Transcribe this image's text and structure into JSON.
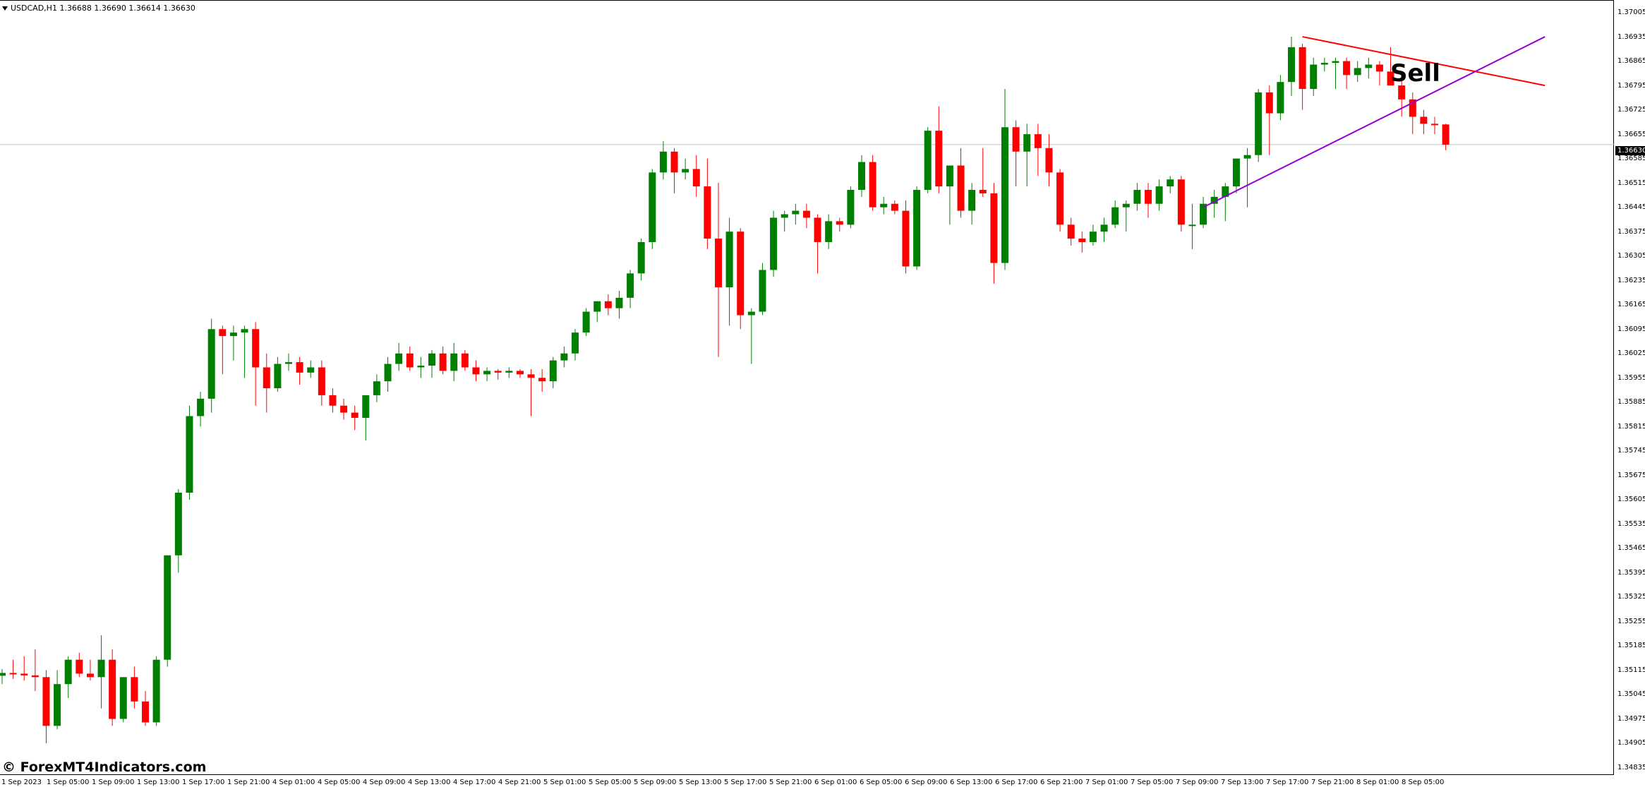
{
  "header": {
    "symbol_info": "USDCAD,H1  1.36688 1.36690 1.36614 1.36630"
  },
  "annotation": {
    "sell_label": "Sell"
  },
  "watermark": "© ForexMT4Indicators.com",
  "current_price": "1.36630",
  "colors": {
    "bull": "#008000",
    "bear": "#ff0000",
    "resistance_line": "#ff0000",
    "support_line": "#9400d3",
    "price_line": "#c0c0c0"
  },
  "chart_data": {
    "type": "candlestick",
    "symbol": "USDCAD",
    "timeframe": "H1",
    "ylim": [
      1.34835,
      1.37005
    ],
    "price_ticks": [
      "1.37005",
      "1.36935",
      "1.36865",
      "1.36795",
      "1.36725",
      "1.36655",
      "1.36585",
      "1.36515",
      "1.36445",
      "1.36375",
      "1.36305",
      "1.36235",
      "1.36165",
      "1.36095",
      "1.36025",
      "1.35955",
      "1.35885",
      "1.35815",
      "1.35745",
      "1.35675",
      "1.35605",
      "1.35535",
      "1.35465",
      "1.35395",
      "1.35325",
      "1.35255",
      "1.35185",
      "1.35115",
      "1.35045",
      "1.34975",
      "1.34905",
      "1.34835"
    ],
    "time_ticks": [
      "1 Sep 2023",
      "1 Sep 05:00",
      "1 Sep 09:00",
      "1 Sep 13:00",
      "1 Sep 17:00",
      "1 Sep 21:00",
      "4 Sep 01:00",
      "4 Sep 05:00",
      "4 Sep 09:00",
      "4 Sep 13:00",
      "4 Sep 17:00",
      "4 Sep 21:00",
      "5 Sep 01:00",
      "5 Sep 05:00",
      "5 Sep 09:00",
      "5 Sep 13:00",
      "5 Sep 17:00",
      "5 Sep 21:00",
      "6 Sep 01:00",
      "6 Sep 05:00",
      "6 Sep 09:00",
      "6 Sep 13:00",
      "6 Sep 17:00",
      "6 Sep 21:00",
      "7 Sep 01:00",
      "7 Sep 05:00",
      "7 Sep 09:00",
      "7 Sep 13:00",
      "7 Sep 17:00",
      "7 Sep 21:00",
      "8 Sep 01:00",
      "8 Sep 05:00"
    ],
    "candles": [
      [
        1.35104,
        1.35123,
        1.3508,
        1.35112
      ],
      [
        1.35112,
        1.3515,
        1.35095,
        1.3511
      ],
      [
        1.3511,
        1.3516,
        1.3509,
        1.35105
      ],
      [
        1.35105,
        1.3518,
        1.3506,
        1.351
      ],
      [
        1.351,
        1.3512,
        1.3491,
        1.3496
      ],
      [
        1.3496,
        1.3512,
        1.3495,
        1.3508
      ],
      [
        1.3508,
        1.3516,
        1.3504,
        1.3515
      ],
      [
        1.3515,
        1.3517,
        1.351,
        1.3511
      ],
      [
        1.3511,
        1.3515,
        1.3509,
        1.351
      ],
      [
        1.351,
        1.3522,
        1.3501,
        1.3515
      ],
      [
        1.3515,
        1.3518,
        1.3496,
        1.3498
      ],
      [
        1.3498,
        1.351,
        1.3497,
        1.351
      ],
      [
        1.351,
        1.3513,
        1.3501,
        1.3503
      ],
      [
        1.3503,
        1.3506,
        1.3496,
        1.3497
      ],
      [
        1.3497,
        1.3516,
        1.3496,
        1.3515
      ],
      [
        1.3515,
        1.3545,
        1.3513,
        1.3545
      ],
      [
        1.3545,
        1.3564,
        1.354,
        1.3563
      ],
      [
        1.3563,
        1.3588,
        1.3561,
        1.3585
      ],
      [
        1.3585,
        1.3592,
        1.3582,
        1.359
      ],
      [
        1.359,
        1.3613,
        1.3586,
        1.361
      ],
      [
        1.361,
        1.3611,
        1.3597,
        1.3608
      ],
      [
        1.3608,
        1.3611,
        1.3601,
        1.3609
      ],
      [
        1.3609,
        1.3611,
        1.3596,
        1.361
      ],
      [
        1.361,
        1.3612,
        1.3588,
        1.3599
      ],
      [
        1.3599,
        1.3603,
        1.3586,
        1.3593
      ],
      [
        1.3593,
        1.3602,
        1.3592,
        1.36
      ],
      [
        1.36,
        1.3603,
        1.3598,
        1.36005
      ],
      [
        1.36005,
        1.3602,
        1.3594,
        1.35975
      ],
      [
        1.35975,
        1.3601,
        1.3596,
        1.3599
      ],
      [
        1.3599,
        1.3601,
        1.3588,
        1.3591
      ],
      [
        1.3591,
        1.3593,
        1.3586,
        1.3588
      ],
      [
        1.3588,
        1.359,
        1.3584,
        1.3586
      ],
      [
        1.3586,
        1.3588,
        1.3581,
        1.35845
      ],
      [
        1.35845,
        1.3591,
        1.3578,
        1.3591
      ],
      [
        1.3591,
        1.3597,
        1.3589,
        1.3595
      ],
      [
        1.3595,
        1.3602,
        1.3592,
        1.36
      ],
      [
        1.36,
        1.3606,
        1.3598,
        1.3603
      ],
      [
        1.3603,
        1.3605,
        1.3598,
        1.3599
      ],
      [
        1.3599,
        1.3602,
        1.3596,
        1.35995
      ],
      [
        1.35995,
        1.3604,
        1.3596,
        1.3603
      ],
      [
        1.3603,
        1.3605,
        1.3597,
        1.3598
      ],
      [
        1.3598,
        1.3606,
        1.3595,
        1.3603
      ],
      [
        1.3603,
        1.3604,
        1.3598,
        1.3599
      ],
      [
        1.3599,
        1.3601,
        1.3595,
        1.3597
      ],
      [
        1.3597,
        1.3599,
        1.3595,
        1.3598
      ],
      [
        1.3598,
        1.35985,
        1.35955,
        1.35975
      ],
      [
        1.35975,
        1.3599,
        1.3596,
        1.3598
      ],
      [
        1.3598,
        1.35985,
        1.3596,
        1.3597
      ],
      [
        1.3597,
        1.35985,
        1.3585,
        1.3596
      ],
      [
        1.3596,
        1.35985,
        1.3592,
        1.3595
      ],
      [
        1.3595,
        1.3602,
        1.3593,
        1.3601
      ],
      [
        1.3601,
        1.3605,
        1.3599,
        1.3603
      ],
      [
        1.3603,
        1.361,
        1.3601,
        1.3609
      ],
      [
        1.3609,
        1.3616,
        1.3608,
        1.3615
      ],
      [
        1.3615,
        1.3618,
        1.3612,
        1.3618
      ],
      [
        1.3618,
        1.362,
        1.3614,
        1.3616
      ],
      [
        1.3616,
        1.3621,
        1.3613,
        1.3619
      ],
      [
        1.3619,
        1.3627,
        1.3616,
        1.3626
      ],
      [
        1.3626,
        1.3636,
        1.3624,
        1.3635
      ],
      [
        1.3635,
        1.3656,
        1.3633,
        1.3655
      ],
      [
        1.3655,
        1.3664,
        1.3653,
        1.3661
      ],
      [
        1.3661,
        1.3662,
        1.3649,
        1.3655
      ],
      [
        1.3655,
        1.3659,
        1.3653,
        1.3656
      ],
      [
        1.3656,
        1.366,
        1.3648,
        1.3651
      ],
      [
        1.3651,
        1.3659,
        1.3633,
        1.3636
      ],
      [
        1.3636,
        1.3652,
        1.3602,
        1.3622
      ],
      [
        1.3622,
        1.3642,
        1.3611,
        1.3638
      ],
      [
        1.3638,
        1.3639,
        1.361,
        1.3614
      ],
      [
        1.3614,
        1.3616,
        1.36,
        1.3615
      ],
      [
        1.3615,
        1.3629,
        1.3614,
        1.3627
      ],
      [
        1.3627,
        1.3644,
        1.3625,
        1.3642
      ],
      [
        1.3642,
        1.3644,
        1.3638,
        1.3643
      ],
      [
        1.3643,
        1.3646,
        1.364,
        1.3644
      ],
      [
        1.3644,
        1.3646,
        1.3639,
        1.3642
      ],
      [
        1.3642,
        1.3643,
        1.3626,
        1.3635
      ],
      [
        1.3635,
        1.3643,
        1.3633,
        1.3641
      ],
      [
        1.3641,
        1.3642,
        1.3638,
        1.364
      ],
      [
        1.364,
        1.3651,
        1.3639,
        1.365
      ],
      [
        1.365,
        1.366,
        1.3648,
        1.3658
      ],
      [
        1.3658,
        1.366,
        1.3644,
        1.3645
      ],
      [
        1.3645,
        1.3648,
        1.3643,
        1.3646
      ],
      [
        1.3646,
        1.3647,
        1.3643,
        1.3644
      ],
      [
        1.3644,
        1.3647,
        1.3626,
        1.3628
      ],
      [
        1.3628,
        1.3651,
        1.3627,
        1.365
      ],
      [
        1.365,
        1.3668,
        1.3649,
        1.3667
      ],
      [
        1.3667,
        1.3674,
        1.3649,
        1.3651
      ],
      [
        1.3651,
        1.3656,
        1.364,
        1.3657
      ],
      [
        1.3657,
        1.3662,
        1.3642,
        1.3644
      ],
      [
        1.3644,
        1.3652,
        1.364,
        1.365
      ],
      [
        1.365,
        1.3662,
        1.3648,
        1.3649
      ],
      [
        1.3649,
        1.3652,
        1.3623,
        1.3629
      ],
      [
        1.3629,
        1.3679,
        1.3627,
        1.3668
      ],
      [
        1.3668,
        1.367,
        1.3651,
        1.3661
      ],
      [
        1.3661,
        1.3669,
        1.3651,
        1.3666
      ],
      [
        1.3666,
        1.3669,
        1.3654,
        1.3662
      ],
      [
        1.3662,
        1.3666,
        1.3651,
        1.3655
      ],
      [
        1.3655,
        1.3656,
        1.3638,
        1.364
      ],
      [
        1.364,
        1.3642,
        1.3634,
        1.3636
      ],
      [
        1.3636,
        1.3638,
        1.3632,
        1.3635
      ],
      [
        1.3635,
        1.364,
        1.3634,
        1.3638
      ],
      [
        1.3638,
        1.3642,
        1.3635,
        1.364
      ],
      [
        1.364,
        1.3647,
        1.3639,
        1.3645
      ],
      [
        1.3645,
        1.3647,
        1.3638,
        1.3646
      ],
      [
        1.3646,
        1.3652,
        1.3644,
        1.365
      ],
      [
        1.365,
        1.3652,
        1.3642,
        1.3646
      ],
      [
        1.3646,
        1.3653,
        1.3644,
        1.3651
      ],
      [
        1.3651,
        1.3654,
        1.3649,
        1.3653
      ],
      [
        1.3653,
        1.3654,
        1.3638,
        1.364
      ],
      [
        1.364,
        1.3646,
        1.3633,
        1.364
      ],
      [
        1.364,
        1.3648,
        1.3639,
        1.3646
      ],
      [
        1.3646,
        1.365,
        1.3642,
        1.3648
      ],
      [
        1.3648,
        1.3652,
        1.3641,
        1.3651
      ],
      [
        1.3651,
        1.3659,
        1.3649,
        1.3659
      ],
      [
        1.3659,
        1.3662,
        1.3645,
        1.366
      ],
      [
        1.366,
        1.3679,
        1.3658,
        1.3678
      ],
      [
        1.3678,
        1.368,
        1.366,
        1.3672
      ],
      [
        1.3672,
        1.3683,
        1.367,
        1.3681
      ],
      [
        1.3681,
        1.3694,
        1.3677,
        1.3691
      ],
      [
        1.3691,
        1.3692,
        1.3673,
        1.3679
      ],
      [
        1.3679,
        1.3688,
        1.3677,
        1.3686
      ],
      [
        1.3686,
        1.3688,
        1.3684,
        1.36865
      ],
      [
        1.36865,
        1.3688,
        1.3679,
        1.3687
      ],
      [
        1.3687,
        1.3688,
        1.3679,
        1.3683
      ],
      [
        1.3683,
        1.3687,
        1.3681,
        1.3685
      ],
      [
        1.3685,
        1.3688,
        1.3682,
        1.3686
      ],
      [
        1.3686,
        1.3687,
        1.368,
        1.3684
      ],
      [
        1.3684,
        1.3691,
        1.368,
        1.368
      ],
      [
        1.368,
        1.3684,
        1.3671,
        1.3676
      ],
      [
        1.3676,
        1.3678,
        1.3666,
        1.3671
      ],
      [
        1.3671,
        1.3673,
        1.3666,
        1.3669
      ],
      [
        1.3669,
        1.3671,
        1.3666,
        1.36688
      ],
      [
        1.36688,
        1.3669,
        1.36614,
        1.3663
      ]
    ],
    "trendlines": [
      {
        "from": [
          118,
          1.3694
        ],
        "to": [
          140,
          1.368
        ],
        "color": "#ff0000"
      },
      {
        "from": [
          109,
          1.3645
        ],
        "to": [
          140,
          1.3694
        ],
        "color": "#9400d3"
      }
    ],
    "current_price": 1.3663
  }
}
